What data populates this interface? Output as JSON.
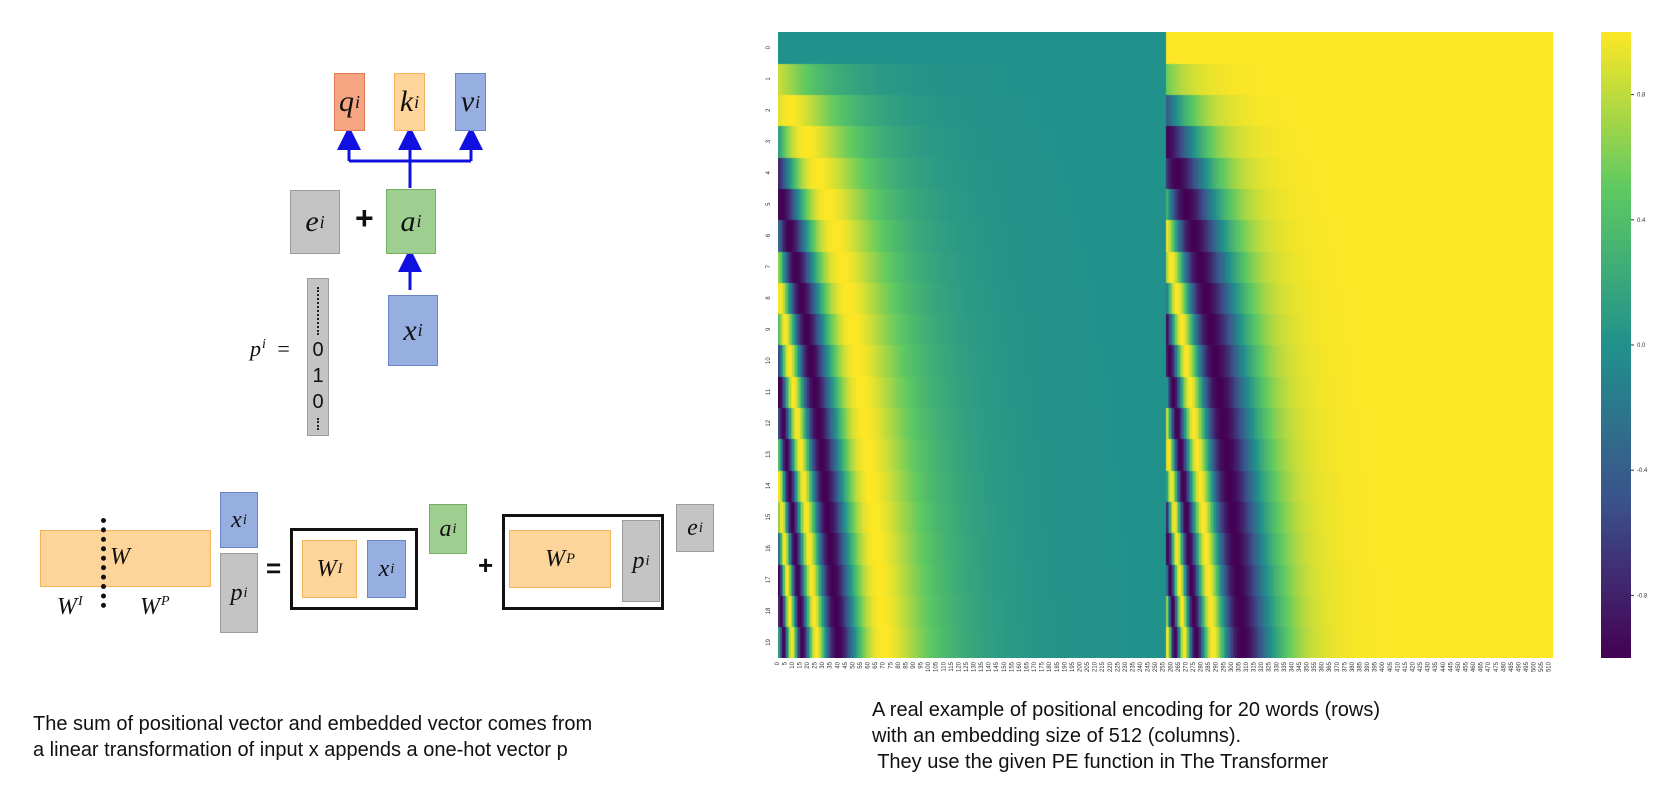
{
  "diagram": {
    "symbols": {
      "q": "q",
      "k": "k",
      "v": "v",
      "e": "e",
      "a": "a",
      "x": "x",
      "p": "p",
      "W": "W",
      "sup_i": "i",
      "sup_I": "I",
      "sup_P": "P"
    },
    "operators": {
      "plus": "+",
      "equals": "=",
      "p_equals": "="
    },
    "one_hot": [
      "0",
      "1",
      "0"
    ],
    "caption_left": "The sum of positional vector and embedded vector comes from\na linear transformation of input x appends a one-hot vector p"
  },
  "heatmap": {
    "caption": "A real example of positional encoding for 20 words (rows)\nwith an embedding size of 512 (columns).\n They use the given PE function in The Transformer",
    "colors": [
      "#440154",
      "#3b528b",
      "#21918c",
      "#5ec962",
      "#fde725"
    ]
  },
  "chart_data": {
    "type": "heatmap",
    "title": "",
    "xlabel": "",
    "ylabel": "",
    "rows": 20,
    "columns": 512,
    "y_ticks": [
      "0",
      "1",
      "2",
      "3",
      "4",
      "5",
      "6",
      "7",
      "8",
      "9",
      "10",
      "11",
      "12",
      "13",
      "14",
      "15",
      "16",
      "17",
      "18",
      "19"
    ],
    "x_tick_step": 5,
    "x_tick_max": 510,
    "colorbar_ticks": [
      "0.8",
      "0.4",
      "0.0",
      "-0.4",
      "-0.8"
    ],
    "colorbar_range": [
      -1,
      1
    ],
    "colormap": "viridis",
    "value_function": "left half (cols 0-255): sin(pos / 10000^(2i/512)); right half (cols 256-511): cos(pos / 10000^(2i/512))"
  }
}
